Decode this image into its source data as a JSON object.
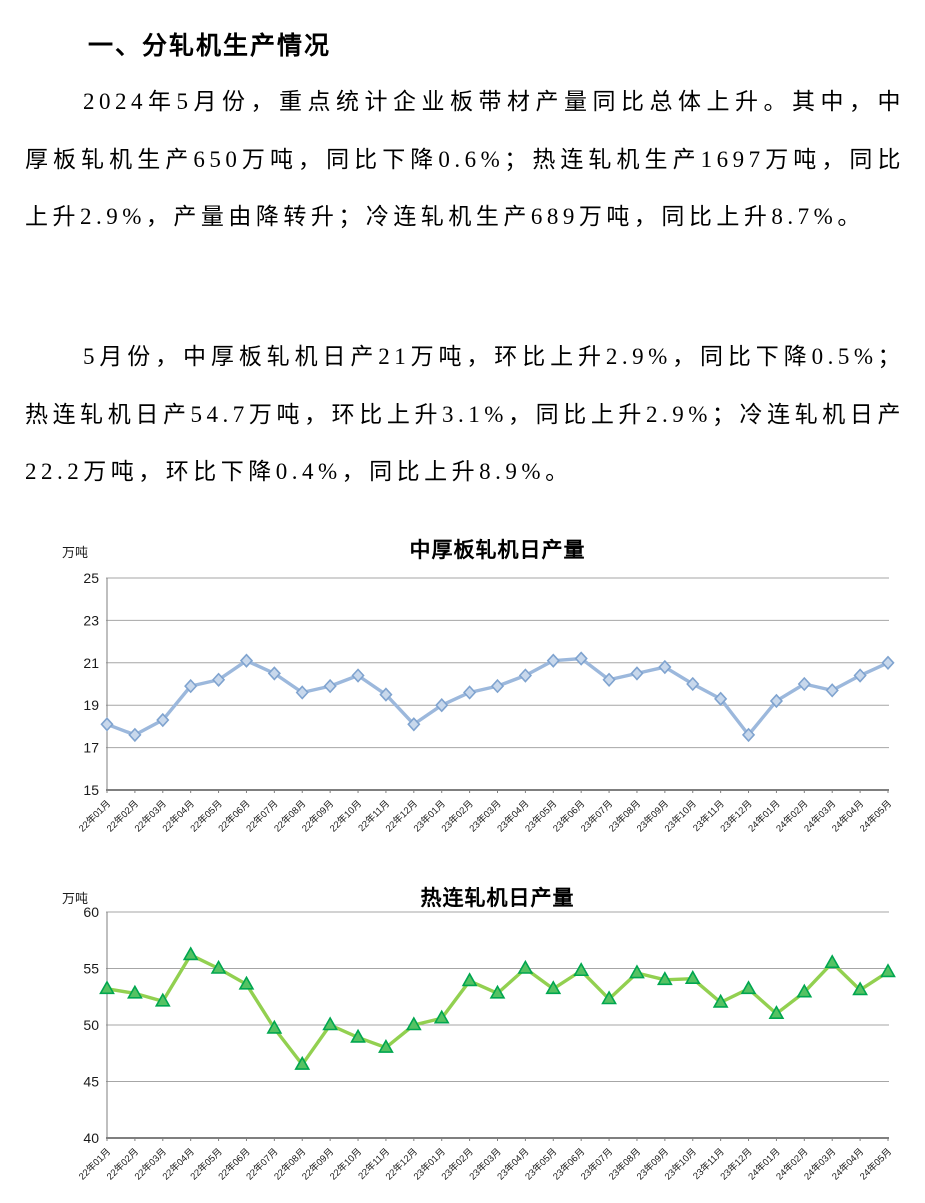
{
  "document": {
    "heading": "一、分轧机生产情况",
    "paragraphs": [
      "2024年5月份，重点统计企业板带材产量同比总体上升。其中，中厚板轧机生产650万吨，同比下降0.6%；热连轧机生产1697万吨，同比上升2.9%，产量由降转升；冷连轧机生产689万吨，同比上升8.7%。",
      "5月份，中厚板轧机日产21万吨，环比上升2.9%，同比下降0.5%；热连轧机日产54.7万吨，环比上升3.1%，同比上升2.9%；冷连轧机日产22.2万吨，环比下降0.4%，同比上升8.9%。"
    ]
  },
  "chart_data": [
    {
      "type": "line",
      "title": "中厚板轧机日产量",
      "ylabel": "万吨",
      "xlabel": "",
      "ylim": [
        15,
        25
      ],
      "yticks": [
        25,
        23,
        21,
        19,
        17,
        15
      ],
      "grid": true,
      "legend": "none",
      "marker": "diamond",
      "colors": {
        "line": "#9CB8DC",
        "marker_fill": "#C8D8EC",
        "marker_stroke": "#7FA3CF",
        "gridline": "#A6A6A6",
        "axis": "#7F7F7F"
      },
      "categories": [
        "22年01月",
        "22年02月",
        "22年03月",
        "22年04月",
        "22年05月",
        "22年06月",
        "22年07月",
        "22年08月",
        "22年09月",
        "22年10月",
        "22年11月",
        "22年12月",
        "23年01月",
        "23年02月",
        "23年03月",
        "23年04月",
        "23年05月",
        "23年06月",
        "23年07月",
        "23年08月",
        "23年09月",
        "23年10月",
        "23年11月",
        "23年12月",
        "24年01月",
        "24年02月",
        "24年03月",
        "24年04月",
        "24年05月"
      ],
      "series": [
        {
          "name": "中厚板轧机日产量",
          "values": [
            18.1,
            17.6,
            18.3,
            19.9,
            20.2,
            21.1,
            20.5,
            19.6,
            19.9,
            20.4,
            19.5,
            18.1,
            19.0,
            19.6,
            19.9,
            20.4,
            21.1,
            21.2,
            20.2,
            20.5,
            20.8,
            20.0,
            19.3,
            17.6,
            19.2,
            20.0,
            19.7,
            20.4,
            21.0
          ]
        }
      ]
    },
    {
      "type": "line",
      "title": "热连轧机日产量",
      "ylabel": "万吨",
      "xlabel": "",
      "ylim": [
        40,
        60
      ],
      "yticks": [
        60,
        55,
        50,
        45,
        40
      ],
      "grid": true,
      "legend": "none",
      "marker": "triangle",
      "colors": {
        "line": "#92D050",
        "marker_fill": "#55C263",
        "marker_stroke": "#00A64F",
        "gridline": "#A6A6A6",
        "axis": "#7F7F7F"
      },
      "categories": [
        "22年01月",
        "22年02月",
        "22年03月",
        "22年04月",
        "22年05月",
        "22年06月",
        "22年07月",
        "22年08月",
        "22年09月",
        "22年10月",
        "22年11月",
        "22年12月",
        "23年01月",
        "23年02月",
        "23年03月",
        "23年04月",
        "23年05月",
        "23年06月",
        "23年07月",
        "23年08月",
        "23年09月",
        "23年10月",
        "23年11月",
        "23年12月",
        "24年01月",
        "24年02月",
        "24年03月",
        "24年04月",
        "24年05月"
      ],
      "series": [
        {
          "name": "热连轧机日产量",
          "values": [
            53.2,
            52.8,
            52.1,
            56.2,
            55.0,
            53.6,
            49.7,
            46.5,
            50.0,
            48.9,
            48.0,
            50.0,
            50.6,
            53.9,
            52.8,
            55.0,
            53.2,
            54.8,
            52.3,
            54.6,
            54.0,
            54.1,
            52.0,
            53.2,
            51.0,
            52.9,
            55.5,
            53.1,
            54.7
          ]
        }
      ]
    }
  ]
}
